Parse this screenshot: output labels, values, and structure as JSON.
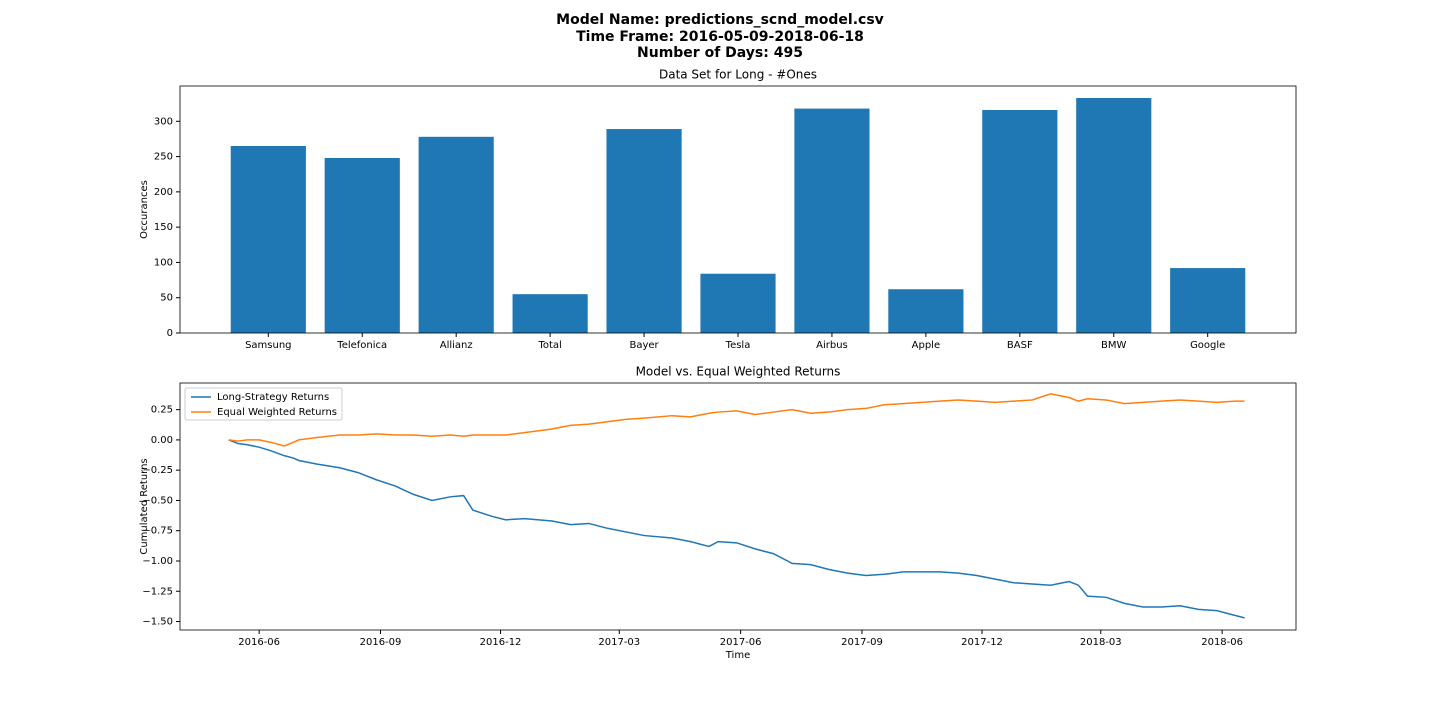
{
  "suptitle": [
    "Model Name: predictions_scnd_model.csv",
    "Time Frame: 2016-05-09-2018-06-18",
    "Number of Days: 495"
  ],
  "chart_data": [
    {
      "type": "bar",
      "title": "Data Set for Long - #Ones",
      "ylabel": "Occurances",
      "categories": [
        "Samsung",
        "Telefonica",
        "Allianz",
        "Total",
        "Bayer",
        "Tesla",
        "Airbus",
        "Apple",
        "BASF",
        "BMW",
        "Google"
      ],
      "values": [
        265,
        248,
        278,
        55,
        289,
        84,
        318,
        62,
        316,
        333,
        92
      ],
      "color": "#1f77b4",
      "ylim": [
        0,
        350
      ],
      "yticks": [
        0,
        50,
        100,
        150,
        200,
        250,
        300
      ],
      "grid": false
    },
    {
      "type": "line",
      "title": "Model vs. Equal Weighted Returns",
      "xlabel": "Time",
      "ylabel": "Cumulated Returns",
      "legend": "upper left",
      "grid": false,
      "x": [
        "2016-05-09",
        "2016-05-16",
        "2016-05-23",
        "2016-06-01",
        "2016-06-10",
        "2016-06-20",
        "2016-06-27",
        "2016-07-01",
        "2016-07-15",
        "2016-08-01",
        "2016-08-15",
        "2016-08-29",
        "2016-09-12",
        "2016-09-26",
        "2016-10-10",
        "2016-10-24",
        "2016-11-03",
        "2016-11-10",
        "2016-11-24",
        "2016-12-05",
        "2016-12-19",
        "2017-01-09",
        "2017-01-23",
        "2017-02-06",
        "2017-02-20",
        "2017-03-06",
        "2017-03-20",
        "2017-04-10",
        "2017-04-24",
        "2017-05-08",
        "2017-05-15",
        "2017-05-29",
        "2017-06-12",
        "2017-06-26",
        "2017-07-10",
        "2017-07-24",
        "2017-08-07",
        "2017-08-21",
        "2017-09-04",
        "2017-09-18",
        "2017-10-02",
        "2017-10-16",
        "2017-10-30",
        "2017-11-13",
        "2017-11-27",
        "2017-12-11",
        "2017-12-25",
        "2018-01-08",
        "2018-01-22",
        "2018-02-05",
        "2018-02-12",
        "2018-02-19",
        "2018-03-05",
        "2018-03-19",
        "2018-04-02",
        "2018-04-16",
        "2018-04-30",
        "2018-05-14",
        "2018-05-28",
        "2018-06-11",
        "2018-06-18"
      ],
      "series": [
        {
          "name": "Long-Strategy Returns",
          "color": "#1f77b4",
          "values": [
            0.0,
            -0.03,
            -0.04,
            -0.06,
            -0.09,
            -0.13,
            -0.15,
            -0.17,
            -0.2,
            -0.23,
            -0.27,
            -0.33,
            -0.38,
            -0.45,
            -0.5,
            -0.47,
            -0.46,
            -0.58,
            -0.63,
            -0.66,
            -0.65,
            -0.67,
            -0.7,
            -0.69,
            -0.73,
            -0.76,
            -0.79,
            -0.81,
            -0.84,
            -0.88,
            -0.84,
            -0.85,
            -0.9,
            -0.94,
            -1.02,
            -1.03,
            -1.07,
            -1.1,
            -1.12,
            -1.11,
            -1.09,
            -1.09,
            -1.09,
            -1.1,
            -1.12,
            -1.15,
            -1.18,
            -1.19,
            -1.2,
            -1.17,
            -1.2,
            -1.29,
            -1.3,
            -1.35,
            -1.38,
            -1.38,
            -1.37,
            -1.4,
            -1.41,
            -1.45,
            -1.47
          ]
        },
        {
          "name": "Equal Weighted Returns",
          "color": "#ff7f0e",
          "values": [
            0.0,
            -0.01,
            0.0,
            0.0,
            -0.02,
            -0.05,
            -0.02,
            0.0,
            0.02,
            0.04,
            0.04,
            0.05,
            0.04,
            0.04,
            0.03,
            0.04,
            0.03,
            0.04,
            0.04,
            0.04,
            0.06,
            0.09,
            0.12,
            0.13,
            0.15,
            0.17,
            0.18,
            0.2,
            0.19,
            0.22,
            0.23,
            0.24,
            0.21,
            0.23,
            0.25,
            0.22,
            0.23,
            0.25,
            0.26,
            0.29,
            0.3,
            0.31,
            0.32,
            0.33,
            0.32,
            0.31,
            0.32,
            0.33,
            0.38,
            0.35,
            0.32,
            0.34,
            0.33,
            0.3,
            0.31,
            0.32,
            0.33,
            0.32,
            0.31,
            0.32,
            0.32
          ]
        }
      ],
      "xlim": [
        "2016-04-02",
        "2018-07-27"
      ],
      "xticks": [
        {
          "value": "2016-06-01",
          "label": "2016-06"
        },
        {
          "value": "2016-09-01",
          "label": "2016-09"
        },
        {
          "value": "2016-12-01",
          "label": "2016-12"
        },
        {
          "value": "2017-03-01",
          "label": "2017-03"
        },
        {
          "value": "2017-06-01",
          "label": "2017-06"
        },
        {
          "value": "2017-09-01",
          "label": "2017-09"
        },
        {
          "value": "2017-12-01",
          "label": "2017-12"
        },
        {
          "value": "2018-03-01",
          "label": "2018-03"
        },
        {
          "value": "2018-06-01",
          "label": "2018-06"
        }
      ],
      "ylim": [
        -1.57,
        0.47
      ],
      "yticks": [
        {
          "value": 0.25,
          "label": "0.25"
        },
        {
          "value": 0,
          "label": "0.00"
        },
        {
          "value": -0.25,
          "label": "−0.25"
        },
        {
          "value": -0.5,
          "label": "−0.50"
        },
        {
          "value": -0.75,
          "label": "−0.75"
        },
        {
          "value": -1,
          "label": "−1.00"
        },
        {
          "value": -1.25,
          "label": "−1.25"
        },
        {
          "value": -1.5,
          "label": "−1.50"
        }
      ]
    }
  ]
}
